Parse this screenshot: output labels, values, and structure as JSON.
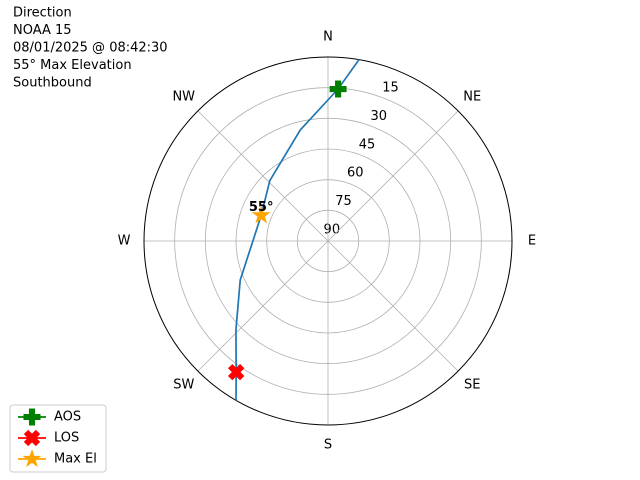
{
  "chart_data": {
    "type": "polar",
    "title_lines": [
      "Direction",
      "NOAA 15",
      "08/01/2025 @ 08:42:30",
      "55° Max Elevation",
      "Southbound"
    ],
    "theta_direction": "clockwise",
    "theta_zero": "N",
    "xlim": [
      0,
      360
    ],
    "xticks": [
      {
        "value": 0,
        "label": "N"
      },
      {
        "value": 45,
        "label": "NE"
      },
      {
        "value": 90,
        "label": "E"
      },
      {
        "value": 135,
        "label": "SE"
      },
      {
        "value": 180,
        "label": "S"
      },
      {
        "value": 225,
        "label": "SW"
      },
      {
        "value": 270,
        "label": "W"
      },
      {
        "value": 315,
        "label": "NW"
      }
    ],
    "ylim": [
      90,
      0
    ],
    "yticks": [
      15,
      30,
      45,
      60,
      75,
      90
    ],
    "grid": true,
    "series": [
      {
        "color": "#1f77b4",
        "marker": "none",
        "x": [
          9.7,
          3.8,
          346,
          316,
          291,
          246,
          226,
          215,
          210
        ],
        "values": [
          0,
          15.5,
          34,
          49,
          55,
          43,
          27.4,
          11.7,
          0
        ]
      },
      {
        "name": "AOS",
        "color": "#008000",
        "marker": "plus",
        "x": [
          3.8
        ],
        "values": [
          15.5
        ]
      },
      {
        "name": "LOS",
        "color": "#ff0000",
        "marker": "x",
        "x": [
          215
        ],
        "values": [
          11.7
        ]
      },
      {
        "name": "Max El",
        "color": "#ffa500",
        "marker": "star",
        "x": [
          291
        ],
        "values": [
          55
        ]
      }
    ],
    "annotations": [
      {
        "text": "55°",
        "x": 291,
        "y": 55
      }
    ],
    "legend": "lower left"
  }
}
